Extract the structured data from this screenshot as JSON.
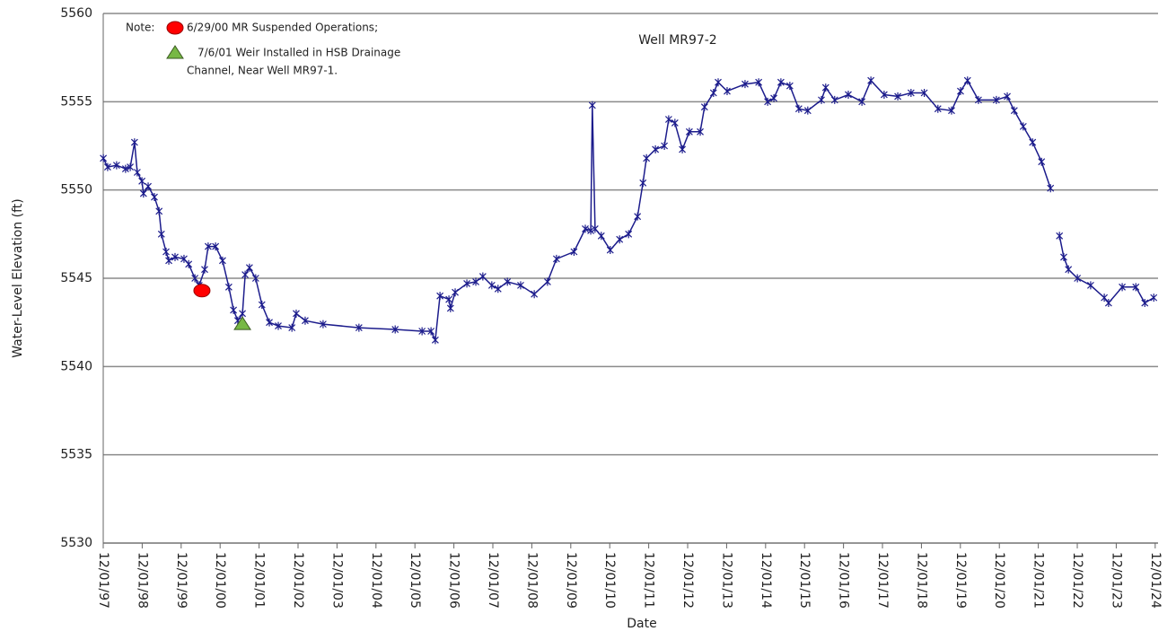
{
  "chart_data": {
    "type": "line",
    "title": "Well MR97-2",
    "x_label": "Date",
    "y_label": "Water-Level Elevation (ft)",
    "note": "Note:",
    "annotations": [
      {
        "text": [
          "6/29/00 MR Suspended Operations;"
        ],
        "x": 2000.45,
        "y": 5544.3,
        "color": "#ff0000",
        "marker": "circle"
      },
      {
        "text": [
          "7/6/01  Weir Installed in HSB Drainage",
          "Channel, Near Well MR97-1."
        ],
        "x": 2001.49,
        "y": 5542.4,
        "color": "#77b845",
        "marker": "triangle"
      }
    ],
    "x": [
      1997.92,
      1998.03,
      1998.26,
      1998.49,
      1998.61,
      1998.72,
      1998.79,
      1998.91,
      1998.95,
      1999.07,
      1999.23,
      1999.35,
      1999.41,
      1999.53,
      1999.6,
      1999.76,
      1999.99,
      2000.11,
      2000.27,
      2000.38,
      2000.52,
      2000.61,
      2000.8,
      2000.98,
      2001.14,
      2001.26,
      2001.37,
      2001.49,
      2001.56,
      2001.67,
      2001.83,
      2001.99,
      2002.18,
      2002.41,
      2002.76,
      2002.87,
      2003.1,
      2003.56,
      2004.48,
      2005.41,
      2006.1,
      2006.33,
      2006.44,
      2006.56,
      2006.79,
      2006.83,
      2006.95,
      2007.25,
      2007.48,
      2007.66,
      2007.89,
      2008.05,
      2008.29,
      2008.63,
      2008.98,
      2009.32,
      2009.55,
      2010.0,
      2010.29,
      2010.43,
      2010.47,
      2010.54,
      2010.7,
      2010.93,
      2011.17,
      2011.4,
      2011.63,
      2011.77,
      2011.86,
      2012.09,
      2012.32,
      2012.43,
      2012.59,
      2012.78,
      2012.96,
      2013.24,
      2013.35,
      2013.58,
      2013.7,
      2013.93,
      2014.39,
      2014.74,
      2014.97,
      2015.13,
      2015.31,
      2015.54,
      2015.77,
      2016.0,
      2016.35,
      2016.46,
      2016.69,
      2017.04,
      2017.39,
      2017.62,
      2017.96,
      2018.31,
      2018.65,
      2018.99,
      2019.34,
      2019.69,
      2019.92,
      2020.1,
      2020.38,
      2020.84,
      2021.12,
      2021.3,
      2021.53,
      2021.77,
      2022.0,
      2022.23,
      null,
      2022.46,
      2022.57,
      2022.69,
      2022.92,
      2023.26,
      2023.61,
      2023.72,
      2024.07,
      2024.42,
      2024.65,
      2024.88
    ],
    "series": [
      {
        "name": "Well MR97-2",
        "color": "#1c1c8c",
        "values": [
          5551.8,
          5551.3,
          5551.4,
          5551.2,
          5551.3,
          5552.7,
          5551.0,
          5550.5,
          5549.8,
          5550.2,
          5549.6,
          5548.8,
          5547.5,
          5546.5,
          5546.0,
          5546.2,
          5546.1,
          5545.8,
          5545.0,
          5544.6,
          5545.5,
          5546.8,
          5546.8,
          5546.0,
          5544.5,
          5543.2,
          5542.6,
          5543.0,
          5545.2,
          5545.6,
          5545.0,
          5543.5,
          5542.5,
          5542.3,
          5542.2,
          5543.0,
          5542.6,
          5542.4,
          5542.2,
          5542.1,
          5542.0,
          5542.0,
          5541.5,
          5544.0,
          5543.8,
          5543.3,
          5544.2,
          5544.7,
          5544.8,
          5545.1,
          5544.6,
          5544.4,
          5544.8,
          5544.6,
          5544.1,
          5544.8,
          5546.1,
          5546.5,
          5547.8,
          5547.7,
          5554.8,
          5547.8,
          5547.4,
          5546.6,
          5547.2,
          5547.5,
          5548.5,
          5550.4,
          5551.8,
          5552.3,
          5552.5,
          5554.0,
          5553.8,
          5552.3,
          5553.3,
          5553.3,
          5554.7,
          5555.5,
          5556.1,
          5555.6,
          5556.0,
          5556.1,
          5555.0,
          5555.2,
          5556.1,
          5555.9,
          5554.6,
          5554.5,
          5555.1,
          5555.8,
          5555.1,
          5555.4,
          5555.0,
          5556.2,
          5555.4,
          5555.3,
          5555.5,
          5555.5,
          5554.6,
          5554.5,
          5555.6,
          5556.2,
          5555.1,
          5555.1,
          5555.3,
          5554.5,
          5553.6,
          5552.7,
          5551.6,
          5550.1,
          null,
          5547.4,
          5546.2,
          5545.5,
          5545.0,
          5544.6,
          5543.9,
          5543.6,
          5544.5,
          5544.5,
          5543.6,
          5543.9
        ]
      }
    ],
    "xlim": [
      1997.917,
      2024.99
    ],
    "xticks": [
      {
        "value": 1997.917,
        "label": "12/01/97"
      },
      {
        "value": 1998.917,
        "label": "12/01/98"
      },
      {
        "value": 1999.917,
        "label": "12/01/99"
      },
      {
        "value": 2000.917,
        "label": "12/01/00"
      },
      {
        "value": 2001.917,
        "label": "12/01/01"
      },
      {
        "value": 2002.917,
        "label": "12/01/02"
      },
      {
        "value": 2003.917,
        "label": "12/01/03"
      },
      {
        "value": 2004.917,
        "label": "12/01/04"
      },
      {
        "value": 2005.917,
        "label": "12/01/05"
      },
      {
        "value": 2006.917,
        "label": "12/01/06"
      },
      {
        "value": 2007.917,
        "label": "12/01/07"
      },
      {
        "value": 2008.917,
        "label": "12/01/08"
      },
      {
        "value": 2009.917,
        "label": "12/01/09"
      },
      {
        "value": 2010.917,
        "label": "12/01/10"
      },
      {
        "value": 2011.917,
        "label": "12/01/11"
      },
      {
        "value": 2012.917,
        "label": "12/01/12"
      },
      {
        "value": 2013.917,
        "label": "12/01/13"
      },
      {
        "value": 2014.917,
        "label": "12/01/14"
      },
      {
        "value": 2015.917,
        "label": "12/01/15"
      },
      {
        "value": 2016.917,
        "label": "12/01/16"
      },
      {
        "value": 2017.917,
        "label": "12/01/17"
      },
      {
        "value": 2018.917,
        "label": "12/01/18"
      },
      {
        "value": 2019.917,
        "label": "12/01/19"
      },
      {
        "value": 2020.917,
        "label": "12/01/20"
      },
      {
        "value": 2021.917,
        "label": "12/01/21"
      },
      {
        "value": 2022.917,
        "label": "12/01/22"
      },
      {
        "value": 2023.917,
        "label": "12/01/23"
      },
      {
        "value": 2024.917,
        "label": "12/01/24"
      }
    ],
    "ylim": [
      5530,
      5560
    ],
    "yticks": [
      5530,
      5535,
      5540,
      5545,
      5550,
      5555,
      5560
    ],
    "grid": true
  }
}
